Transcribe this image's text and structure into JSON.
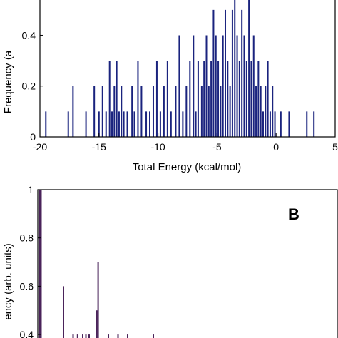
{
  "chart_data": [
    {
      "panel": "A",
      "type": "bar",
      "label": "",
      "xlabel": "Total Energy (kcal/mol)",
      "ylabel": "Frequency (a",
      "xlim": [
        -20,
        5
      ],
      "ylim": [
        0,
        0.55
      ],
      "xticks": [
        -20,
        -15,
        -10,
        -5,
        0,
        5
      ],
      "xtick_labels": [
        "-20",
        "-15",
        "-10",
        "-5",
        "0",
        "5"
      ],
      "yticks": [
        0,
        0.2,
        0.4
      ],
      "ytick_labels": [
        "0",
        "0.2",
        "0.4"
      ],
      "bar_color": "#1a237e",
      "x": [
        -19.5,
        -17.6,
        -17.2,
        -16.1,
        -15.4,
        -15.0,
        -14.7,
        -14.4,
        -14.1,
        -13.9,
        -13.7,
        -13.5,
        -13.3,
        -13.1,
        -12.9,
        -12.6,
        -12.2,
        -12.0,
        -11.7,
        -11.4,
        -11.0,
        -10.7,
        -10.4,
        -10.1,
        -9.8,
        -9.5,
        -9.2,
        -8.9,
        -8.5,
        -8.2,
        -7.9,
        -7.6,
        -7.3,
        -7.0,
        -6.8,
        -6.6,
        -6.3,
        -6.1,
        -5.9,
        -5.7,
        -5.5,
        -5.3,
        -5.1,
        -4.9,
        -4.7,
        -4.5,
        -4.3,
        -4.1,
        -3.9,
        -3.7,
        -3.5,
        -3.3,
        -3.1,
        -2.9,
        -2.7,
        -2.5,
        -2.3,
        -2.1,
        -1.9,
        -1.7,
        -1.5,
        -1.3,
        -1.1,
        -0.9,
        -0.7,
        -0.5,
        -0.3,
        -0.1,
        0.4,
        1.1,
        2.6,
        3.2
      ],
      "values": [
        0.1,
        0.1,
        0.2,
        0.1,
        0.2,
        0.1,
        0.2,
        0.1,
        0.3,
        0.1,
        0.2,
        0.3,
        0.1,
        0.2,
        0.1,
        0.1,
        0.2,
        0.1,
        0.3,
        0.2,
        0.1,
        0.1,
        0.2,
        0.3,
        0.1,
        0.2,
        0.3,
        0.1,
        0.2,
        0.4,
        0.1,
        0.2,
        0.3,
        0.4,
        0.1,
        0.3,
        0.2,
        0.3,
        0.4,
        0.2,
        0.3,
        0.5,
        0.4,
        0.3,
        0.2,
        0.4,
        0.5,
        0.3,
        0.2,
        0.5,
        0.6,
        0.4,
        0.3,
        0.5,
        0.4,
        0.3,
        0.6,
        0.3,
        0.4,
        0.2,
        0.3,
        0.2,
        0.1,
        0.2,
        0.3,
        0.1,
        0.2,
        0.1,
        0.1,
        0.1,
        0.1,
        0.1
      ]
    },
    {
      "panel": "B",
      "type": "bar",
      "label": "B",
      "ylabel": "ency (arb. units)",
      "ylim": [
        0.35,
        1.0
      ],
      "yticks": [
        0.4,
        0.6,
        0.8,
        1
      ],
      "ytick_labels": [
        "0.4",
        "0.6",
        "0.8",
        "1"
      ],
      "bar_color": "#4a235a",
      "x": [
        0.3,
        0.5,
        4.0,
        5.5,
        6.2,
        7.0,
        7.5,
        8.0,
        9.2,
        9.4,
        11.0,
        12.5,
        14.0,
        18.0
      ],
      "values": [
        1.0,
        1.0,
        0.6,
        0.4,
        0.4,
        0.4,
        0.4,
        0.4,
        0.5,
        0.7,
        0.4,
        0.4,
        0.4,
        0.4
      ]
    }
  ]
}
